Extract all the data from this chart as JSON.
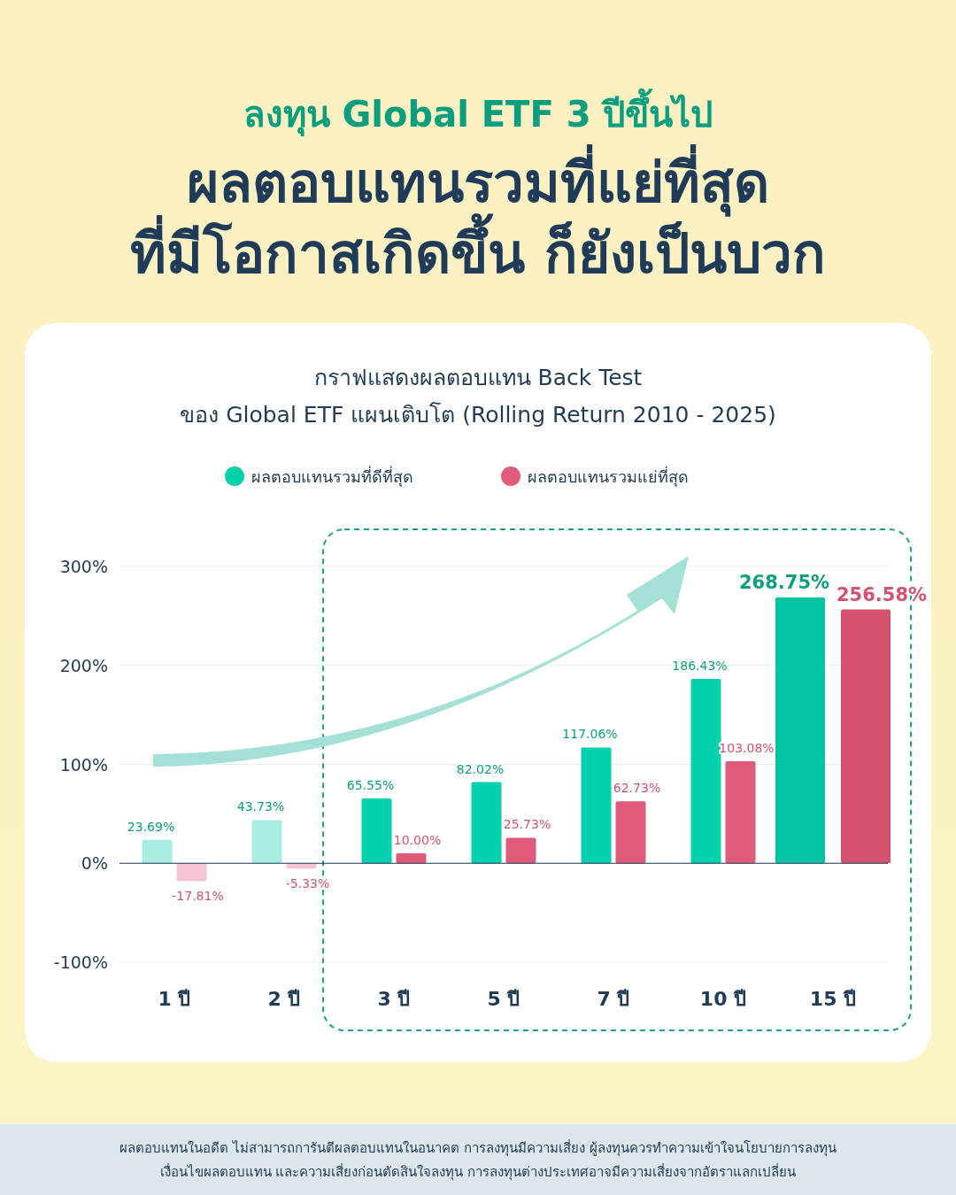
{
  "chart_data": {
    "type": "bar",
    "title": "ลงทุน Global ETF 3 ปีขึ้นไป",
    "subtitle": "ผลตอบแทนรวมที่แย่ที่สุด\nที่มีโอกาสเกิดขึ้น ก็ยังเป็นบวก",
    "annotations": [
      "กราฟแสดงผลตอบแทน Back Test\nของ Global ETF แผนเติบโต (Rolling Return 2010 - 2025)",
      "ผลตอบแทนในอดีต ไม่สามารถการันตีผลตอบแทนในอนาคต การลงทุนมีความเสี่ยง ผู้ลงทุนควรทำความเข้าใจนโยบายการลงทุน\nเงื่อนไขผลตอบแทน และความเสี่ยงก่อนตัดสินใจลงทุน การลงทุนต่างประเทศอาจมีความเสี่ยงจากอัตราแลกเปลี่ยน"
    ],
    "categories": [
      "1 ปี",
      "2 ปี",
      "3 ปี",
      "5 ปี",
      "7 ปี",
      "10 ปี",
      "15 ปี"
    ],
    "series": [
      {
        "name": "ผลตอบแทนรวมที่ดีที่สุด",
        "color": "#00d1ad",
        "colors": [
          "#a8ede0",
          "#a8ede0",
          "#00d1ad",
          "#00d1ad",
          "#00d1ad",
          "#00d1ad",
          "#00c4a2"
        ],
        "values": [
          23.69,
          43.73,
          65.55,
          82.02,
          117.06,
          186.43,
          268.75
        ],
        "value_labels": [
          "23.69%",
          "43.73%",
          "65.55%",
          "82.02%",
          "117.06%",
          "186.43%",
          "268.75%"
        ]
      },
      {
        "name": "ผลตอบแทนรวมแย่ที่สุด",
        "color": "#e05a7a",
        "colors": [
          "#f5c6d1",
          "#f5c6d1",
          "#e05a7a",
          "#e05a7a",
          "#e05a7a",
          "#e05a7a",
          "#d4526f"
        ],
        "values": [
          -17.81,
          -5.33,
          10.0,
          25.73,
          62.73,
          103.08,
          256.58
        ],
        "value_labels": [
          "-17.81%",
          "-5.33%",
          "10.00%",
          "25.73%",
          "62.73%",
          "103.08%",
          "256.58%"
        ]
      }
    ],
    "ylim": [
      -100,
      300
    ],
    "yticks": [
      {
        "value": -100,
        "label": "-100%"
      },
      {
        "value": 0,
        "label": "0%"
      },
      {
        "value": 100,
        "label": "100%"
      },
      {
        "value": 200,
        "label": "200%"
      },
      {
        "value": 300,
        "label": "300%"
      }
    ],
    "grid": "y",
    "legend": "top"
  }
}
